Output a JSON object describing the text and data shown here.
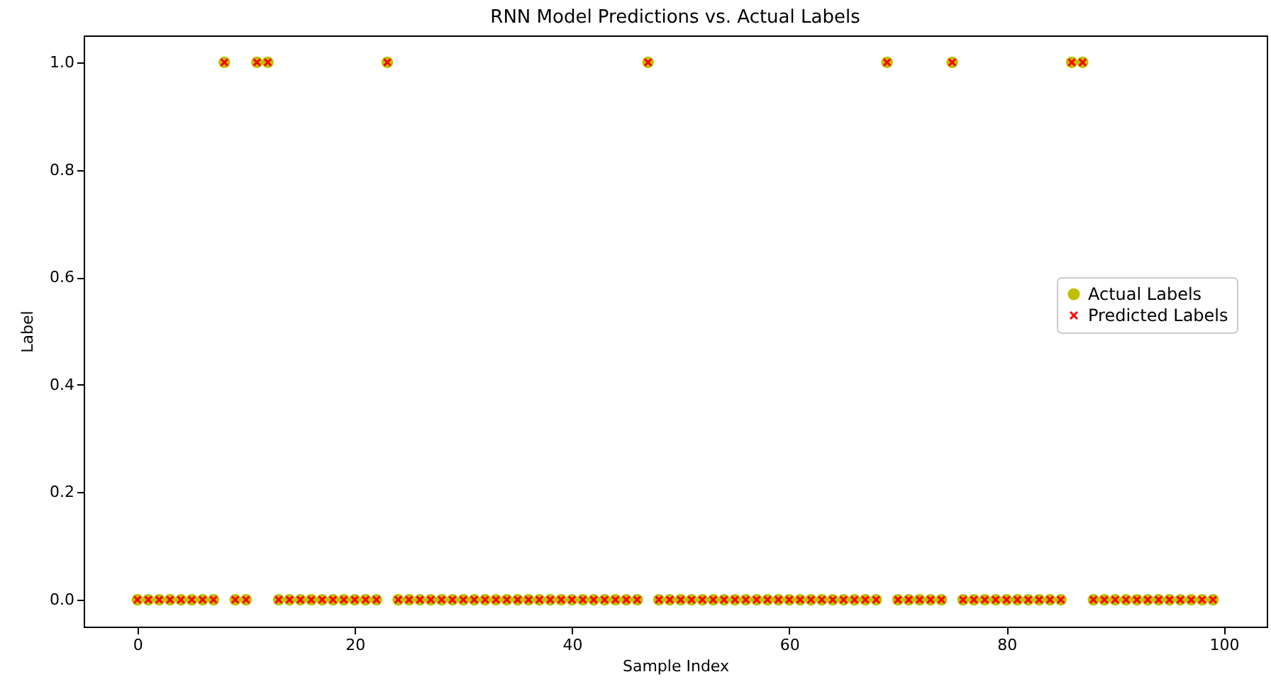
{
  "chart_data": {
    "type": "scatter",
    "title": "RNN Model Predictions vs. Actual Labels",
    "xlabel": "Sample Index",
    "ylabel": "Label",
    "x": [
      0,
      1,
      2,
      3,
      4,
      5,
      6,
      7,
      8,
      9,
      10,
      11,
      12,
      13,
      14,
      15,
      16,
      17,
      18,
      19,
      20,
      21,
      22,
      23,
      24,
      25,
      26,
      27,
      28,
      29,
      30,
      31,
      32,
      33,
      34,
      35,
      36,
      37,
      38,
      39,
      40,
      41,
      42,
      43,
      44,
      45,
      46,
      47,
      48,
      49,
      50,
      51,
      52,
      53,
      54,
      55,
      56,
      57,
      58,
      59,
      60,
      61,
      62,
      63,
      64,
      65,
      66,
      67,
      68,
      69,
      70,
      71,
      72,
      73,
      74,
      75,
      76,
      77,
      78,
      79,
      80,
      81,
      82,
      83,
      84,
      85,
      86,
      87,
      88,
      89,
      90,
      91,
      92,
      93,
      94,
      95,
      96,
      97,
      98,
      99
    ],
    "series": [
      {
        "name": "Actual Labels",
        "color": "#bfbf00",
        "marker": "circle",
        "values": [
          0,
          0,
          0,
          0,
          0,
          0,
          0,
          0,
          1,
          0,
          0,
          1,
          1,
          0,
          0,
          0,
          0,
          0,
          0,
          0,
          0,
          0,
          0,
          1,
          0,
          0,
          0,
          0,
          0,
          0,
          0,
          0,
          0,
          0,
          0,
          0,
          0,
          0,
          0,
          0,
          0,
          0,
          0,
          0,
          0,
          0,
          0,
          1,
          0,
          0,
          0,
          0,
          0,
          0,
          0,
          0,
          0,
          0,
          0,
          0,
          0,
          0,
          0,
          0,
          0,
          0,
          0,
          0,
          0,
          1,
          0,
          0,
          0,
          0,
          0,
          1,
          0,
          0,
          0,
          0,
          0,
          0,
          0,
          0,
          0,
          0,
          1,
          1,
          0,
          0,
          0,
          0,
          0,
          0,
          0,
          0,
          0,
          0,
          0,
          0
        ]
      },
      {
        "name": "Predicted Labels",
        "color": "#ff0000",
        "marker": "cross",
        "values": [
          0,
          0,
          0,
          0,
          0,
          0,
          0,
          0,
          1,
          0,
          0,
          1,
          1,
          0,
          0,
          0,
          0,
          0,
          0,
          0,
          0,
          0,
          0,
          1,
          0,
          0,
          0,
          0,
          0,
          0,
          0,
          0,
          0,
          0,
          0,
          0,
          0,
          0,
          0,
          0,
          0,
          0,
          0,
          0,
          0,
          0,
          0,
          1,
          0,
          0,
          0,
          0,
          0,
          0,
          0,
          0,
          0,
          0,
          0,
          0,
          0,
          0,
          0,
          0,
          0,
          0,
          0,
          0,
          0,
          1,
          0,
          0,
          0,
          0,
          0,
          1,
          0,
          0,
          0,
          0,
          0,
          0,
          0,
          0,
          0,
          0,
          1,
          1,
          0,
          0,
          0,
          0,
          0,
          0,
          0,
          0,
          0,
          0,
          0,
          0
        ]
      }
    ],
    "xlim": [
      -4.95,
      103.95
    ],
    "xticks": [
      0,
      20,
      40,
      60,
      80,
      100
    ],
    "ylim": [
      -0.05,
      1.05
    ],
    "yticks": [
      {
        "value": 0,
        "label": "0.0"
      },
      {
        "value": 0.2,
        "label": "0.2"
      },
      {
        "value": 0.4,
        "label": "0.4"
      },
      {
        "value": 0.6,
        "label": "0.6"
      },
      {
        "value": 0.8,
        "label": "0.8"
      },
      {
        "value": 1,
        "label": "1.0"
      }
    ],
    "legend": "right"
  }
}
